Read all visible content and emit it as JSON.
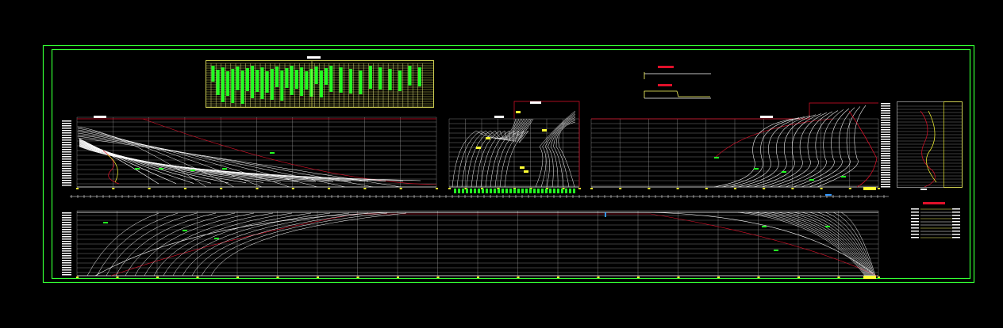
{
  "drawing": {
    "type": "ship lines plan (CAD)",
    "colors": {
      "background": "#000000",
      "frame": "#33ff33",
      "lines": "#ffffff",
      "grid": "#bbbbbb",
      "accent_red": "#e0102a",
      "accent_yellow": "#ffff33",
      "accent_green": "#22ff22",
      "table_yellow": "#ffff66"
    }
  }
}
